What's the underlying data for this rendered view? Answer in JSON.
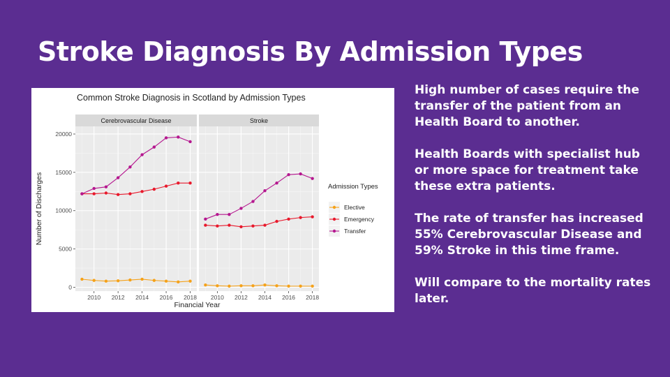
{
  "slide": {
    "title": "Stroke Diagnosis By Admission Types",
    "paragraphs": [
      "High number of cases require the transfer of the patient from an Health Board to another.",
      "Health Boards with specialist hub or more space for treatment take these extra patients.",
      "The rate of transfer has increased 55% Cerebrovascular Disease and 59%  Stroke in this time frame.",
      "Will compare to the mortality rates later."
    ]
  },
  "chart_data": {
    "type": "line",
    "title": "Common Stroke Diagnosis in Scotland by Admission Types",
    "xlabel": "Financial Year",
    "ylabel": "Number of Discharges",
    "x": [
      2009,
      2010,
      2011,
      2012,
      2013,
      2014,
      2015,
      2016,
      2017,
      2018
    ],
    "x_ticks": [
      2010,
      2012,
      2014,
      2016,
      2018
    ],
    "y_ticks": [
      0,
      5000,
      10000,
      15000,
      20000
    ],
    "ylim": [
      -500,
      21000
    ],
    "grid": true,
    "legend": {
      "title": "Admission Types",
      "placement": "right"
    },
    "colors": {
      "Elective": "#f5a21a",
      "Emergency": "#e8192c",
      "Transfer": "#b5178f"
    },
    "facets": [
      {
        "label": "Cerebrovascular Disease",
        "series": [
          {
            "name": "Elective",
            "values": [
              1050,
              900,
              800,
              850,
              950,
              1050,
              900,
              800,
              700,
              800
            ]
          },
          {
            "name": "Emergency",
            "values": [
              12200,
              12200,
              12300,
              12100,
              12200,
              12500,
              12800,
              13200,
              13600,
              13600
            ]
          },
          {
            "name": "Transfer",
            "values": [
              12200,
              12900,
              13100,
              14300,
              15700,
              17300,
              18300,
              19500,
              19600,
              19000
            ]
          }
        ]
      },
      {
        "label": "Stroke",
        "series": [
          {
            "name": "Elective",
            "values": [
              300,
              200,
              150,
              200,
              200,
              300,
              200,
              150,
              150,
              150
            ]
          },
          {
            "name": "Emergency",
            "values": [
              8100,
              8000,
              8100,
              7900,
              8000,
              8100,
              8600,
              8900,
              9100,
              9200
            ]
          },
          {
            "name": "Transfer",
            "values": [
              8900,
              9500,
              9500,
              10300,
              11200,
              12600,
              13600,
              14700,
              14800,
              14200
            ]
          }
        ]
      }
    ]
  }
}
